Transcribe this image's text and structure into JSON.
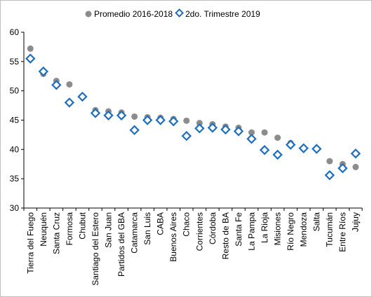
{
  "chart_data": {
    "type": "scatter",
    "title": "",
    "xlabel": "",
    "ylabel": "",
    "ylim": [
      30,
      60
    ],
    "y_ticks": [
      "30",
      "35",
      "40",
      "45",
      "50",
      "55",
      "60"
    ],
    "grid": false,
    "legend_position": "top",
    "categories": [
      "Tierra del Fuego",
      "Neuquén",
      "Santa Cruz",
      "Formosa",
      "Chubut",
      "Santiago del Estero",
      "San Juan",
      "Partidos del GBA",
      "Catamarca",
      "San Luis",
      "CABA",
      "Buenos Aires",
      "Chaco",
      "Corrientes",
      "Córdoba",
      "Resto de BA",
      "Santa Fe",
      "La Pampa",
      "La Rioja",
      "Misiones",
      "Río Negro",
      "Mendoza",
      "Salta",
      "Tucumán",
      "Entre Ríos",
      "Jujuy"
    ],
    "series": [
      {
        "name": "Promedio 2016-2018",
        "marker": "circle",
        "color": "#8c8c8c",
        "values": [
          57.2,
          52.9,
          51.7,
          51.1,
          49.1,
          46.7,
          46.5,
          46.3,
          45.6,
          45.5,
          45.4,
          45.2,
          44.9,
          44.5,
          44.3,
          43.9,
          43.7,
          42.9,
          42.9,
          42.0,
          41.1,
          40.3,
          40.1,
          38.0,
          37.5,
          37.0
        ]
      },
      {
        "name": "2do. Trimestre 2019",
        "marker": "diamond",
        "color": "#1f6fbf",
        "values": [
          55.5,
          53.3,
          51.0,
          48.0,
          49.0,
          46.2,
          45.8,
          45.8,
          43.3,
          45.0,
          45.0,
          44.8,
          42.3,
          43.6,
          43.7,
          43.4,
          43.1,
          41.8,
          39.9,
          39.1,
          40.8,
          40.2,
          40.1,
          35.6,
          36.8,
          39.3
        ]
      }
    ]
  }
}
